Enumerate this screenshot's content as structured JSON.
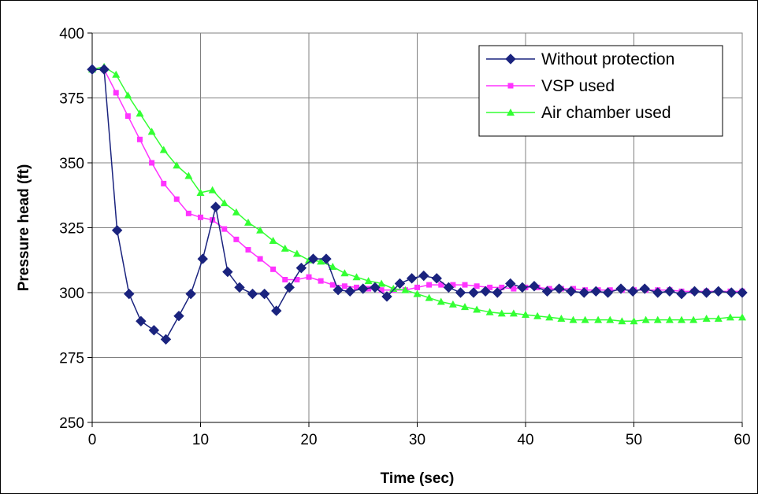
{
  "chart_data": {
    "type": "line",
    "xlabel": "Time (sec)",
    "ylabel": "Pressure head (ft)",
    "xlim": [
      0,
      60
    ],
    "ylim": [
      250,
      400
    ],
    "x_ticks": [
      "0",
      "10",
      "20",
      "30",
      "40",
      "50",
      "60"
    ],
    "y_ticks": [
      "250",
      "275",
      "300",
      "325",
      "350",
      "375",
      "400"
    ],
    "grid": "horizontal and vertical",
    "legend_position": "top-right",
    "series": [
      {
        "name": "Without protection",
        "color": "#1a237e",
        "marker": "diamond",
        "points": [
          [
            0,
            386
          ],
          [
            1.1,
            386
          ],
          [
            2.3,
            324
          ],
          [
            3.4,
            299.5
          ],
          [
            4.5,
            289
          ],
          [
            5.7,
            285.5
          ],
          [
            6.8,
            282
          ],
          [
            8,
            291
          ],
          [
            9.1,
            299.5
          ],
          [
            10.2,
            313
          ],
          [
            11.4,
            333
          ],
          [
            12.5,
            308
          ],
          [
            13.6,
            302
          ],
          [
            14.8,
            299.5
          ],
          [
            15.9,
            299.5
          ],
          [
            17,
            293
          ],
          [
            18.2,
            302
          ],
          [
            19.3,
            309.5
          ],
          [
            20.4,
            313
          ],
          [
            21.6,
            313
          ],
          [
            22.7,
            301
          ],
          [
            23.8,
            300.5
          ],
          [
            25,
            301.5
          ],
          [
            26.1,
            302
          ],
          [
            27.2,
            298.5
          ],
          [
            28.4,
            303.5
          ],
          [
            29.5,
            305.5
          ],
          [
            30.6,
            306.5
          ],
          [
            31.8,
            305.5
          ],
          [
            32.9,
            302
          ],
          [
            34,
            300
          ],
          [
            35.2,
            300
          ],
          [
            36.3,
            300.5
          ],
          [
            37.4,
            300
          ],
          [
            38.6,
            303.5
          ],
          [
            39.7,
            302
          ],
          [
            40.8,
            302.5
          ],
          [
            42,
            300.5
          ],
          [
            43.1,
            301.5
          ],
          [
            44.2,
            300.5
          ],
          [
            45.4,
            300
          ],
          [
            46.5,
            300.5
          ],
          [
            47.6,
            300
          ],
          [
            48.8,
            301.5
          ],
          [
            49.9,
            300.5
          ],
          [
            51,
            301.5
          ],
          [
            52.2,
            300
          ],
          [
            53.3,
            300.5
          ],
          [
            54.4,
            299.5
          ],
          [
            55.6,
            300.5
          ],
          [
            56.7,
            300
          ],
          [
            57.8,
            300.5
          ],
          [
            59,
            300
          ],
          [
            60,
            300
          ]
        ]
      },
      {
        "name": "VSP used",
        "color": "#ff33ff",
        "marker": "square",
        "points": [
          [
            0,
            386
          ],
          [
            1.1,
            386
          ],
          [
            2.2,
            377
          ],
          [
            3.3,
            368
          ],
          [
            4.4,
            359
          ],
          [
            5.5,
            350
          ],
          [
            6.6,
            342
          ],
          [
            7.8,
            336
          ],
          [
            8.9,
            330.5
          ],
          [
            10,
            329
          ],
          [
            11.1,
            328
          ],
          [
            12.2,
            324.5
          ],
          [
            13.3,
            320.5
          ],
          [
            14.4,
            316.5
          ],
          [
            15.5,
            313
          ],
          [
            16.7,
            309
          ],
          [
            17.8,
            305
          ],
          [
            18.9,
            305
          ],
          [
            20,
            306
          ],
          [
            21.1,
            304.5
          ],
          [
            22.2,
            303
          ],
          [
            23.3,
            302.5
          ],
          [
            24.4,
            302
          ],
          [
            25.5,
            301.5
          ],
          [
            26.7,
            301
          ],
          [
            27.8,
            301
          ],
          [
            28.9,
            301
          ],
          [
            30,
            302
          ],
          [
            31.1,
            303
          ],
          [
            32.2,
            303
          ],
          [
            33.3,
            303
          ],
          [
            34.4,
            303
          ],
          [
            35.5,
            302.5
          ],
          [
            36.7,
            302
          ],
          [
            37.8,
            302
          ],
          [
            38.9,
            301.5
          ],
          [
            40,
            302
          ],
          [
            41.1,
            302
          ],
          [
            42.2,
            301.5
          ],
          [
            43.3,
            301.5
          ],
          [
            44.4,
            301.5
          ],
          [
            45.5,
            301
          ],
          [
            46.7,
            301
          ],
          [
            47.8,
            301
          ],
          [
            48.9,
            301
          ],
          [
            50,
            301
          ],
          [
            51.1,
            301
          ],
          [
            52.2,
            301
          ],
          [
            53.3,
            301
          ],
          [
            54.4,
            300.5
          ],
          [
            55.5,
            300.5
          ],
          [
            56.7,
            300.5
          ],
          [
            57.8,
            300.5
          ],
          [
            58.9,
            300.5
          ],
          [
            60,
            300.5
          ]
        ]
      },
      {
        "name": "Air chamber used",
        "color": "#33ff33",
        "marker": "triangle",
        "points": [
          [
            0,
            386
          ],
          [
            1.1,
            387
          ],
          [
            2.2,
            384
          ],
          [
            3.3,
            376
          ],
          [
            4.4,
            369
          ],
          [
            5.5,
            362
          ],
          [
            6.6,
            355
          ],
          [
            7.8,
            349
          ],
          [
            8.9,
            345
          ],
          [
            10,
            338.5
          ],
          [
            11.1,
            339.5
          ],
          [
            12.2,
            334.5
          ],
          [
            13.3,
            331
          ],
          [
            14.4,
            327
          ],
          [
            15.5,
            324
          ],
          [
            16.7,
            320
          ],
          [
            17.8,
            317
          ],
          [
            18.9,
            315
          ],
          [
            20,
            312.5
          ],
          [
            21.1,
            312
          ],
          [
            22.2,
            310
          ],
          [
            23.3,
            307.5
          ],
          [
            24.4,
            306
          ],
          [
            25.5,
            304.5
          ],
          [
            26.7,
            303.5
          ],
          [
            27.8,
            301.5
          ],
          [
            28.9,
            301
          ],
          [
            30,
            299.5
          ],
          [
            31.1,
            298
          ],
          [
            32.2,
            296.5
          ],
          [
            33.3,
            295.5
          ],
          [
            34.4,
            294.5
          ],
          [
            35.5,
            293.5
          ],
          [
            36.7,
            292.5
          ],
          [
            37.8,
            292
          ],
          [
            38.9,
            292
          ],
          [
            40,
            291.5
          ],
          [
            41.1,
            291
          ],
          [
            42.2,
            290.5
          ],
          [
            43.3,
            290
          ],
          [
            44.4,
            289.5
          ],
          [
            45.5,
            289.5
          ],
          [
            46.7,
            289.5
          ],
          [
            47.8,
            289.5
          ],
          [
            48.9,
            289
          ],
          [
            50,
            289
          ],
          [
            51.1,
            289.5
          ],
          [
            52.2,
            289.5
          ],
          [
            53.3,
            289.5
          ],
          [
            54.4,
            289.5
          ],
          [
            55.5,
            289.5
          ],
          [
            56.7,
            290
          ],
          [
            57.8,
            290
          ],
          [
            58.9,
            290.5
          ],
          [
            60,
            290.5
          ]
        ]
      }
    ]
  }
}
